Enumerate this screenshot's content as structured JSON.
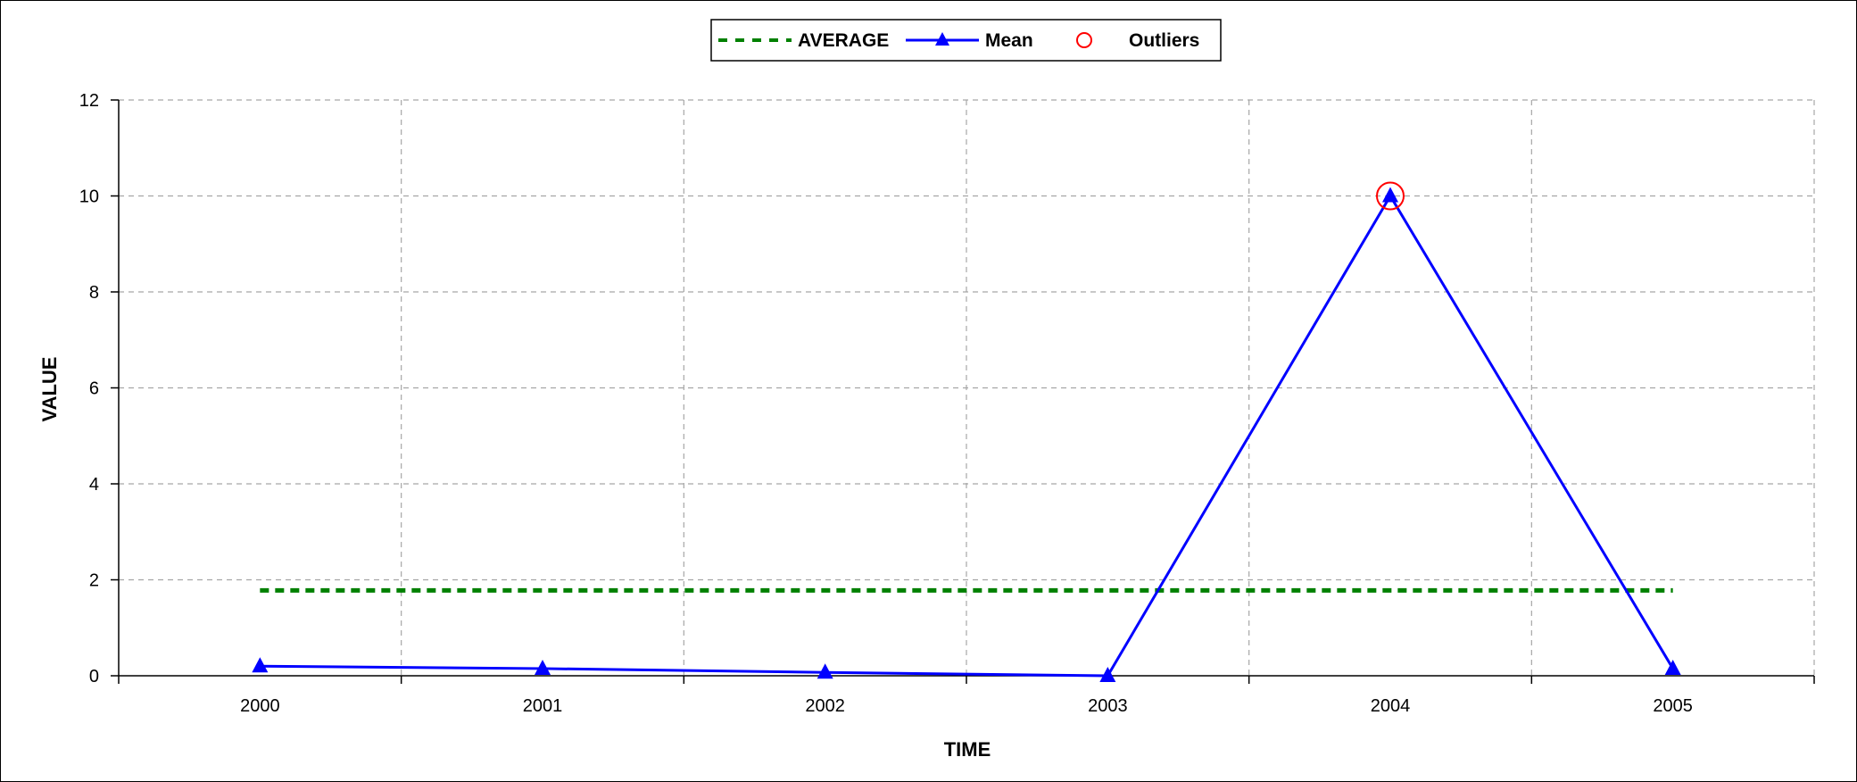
{
  "chart_data": {
    "type": "line",
    "title": "",
    "xlabel": "TIME",
    "ylabel": "VALUE",
    "categories": [
      "2000",
      "2001",
      "2002",
      "2003",
      "2004",
      "2005"
    ],
    "ylim": [
      0,
      12
    ],
    "yticks": [
      "0",
      "2",
      "4",
      "6",
      "8",
      "10",
      "12"
    ],
    "grid": true,
    "legend_position": "top-center",
    "series": [
      {
        "name": "AVERAGE",
        "style": "dashed",
        "color": "#008000",
        "values": [
          1.78,
          1.78,
          1.78,
          1.78,
          1.78,
          1.78
        ]
      },
      {
        "name": "Mean",
        "style": "solid-triangle-markers",
        "color": "#0000ff",
        "values": [
          0.2,
          0.15,
          0.07,
          0.0,
          10.0,
          0.15
        ]
      },
      {
        "name": "Outliers",
        "style": "open-circle-markers",
        "color": "#ff0000",
        "points": [
          {
            "x": "2004",
            "y": 10.0
          }
        ]
      }
    ]
  }
}
